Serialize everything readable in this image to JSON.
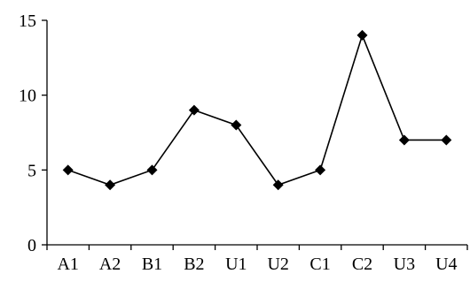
{
  "chart_data": {
    "type": "line",
    "categories": [
      "A1",
      "A2",
      "B1",
      "B2",
      "U1",
      "U2",
      "C1",
      "C2",
      "U3",
      "U4"
    ],
    "series": [
      {
        "values": [
          5,
          4,
          5,
          9,
          8,
          4,
          5,
          14,
          7,
          7
        ],
        "marker": "diamond",
        "color": "#000000"
      }
    ],
    "title": "",
    "xlabel": "",
    "ylabel": "",
    "ylim": [
      0,
      15
    ],
    "yticks": [
      0,
      5,
      10,
      15
    ],
    "grid": false,
    "legend": "none"
  }
}
